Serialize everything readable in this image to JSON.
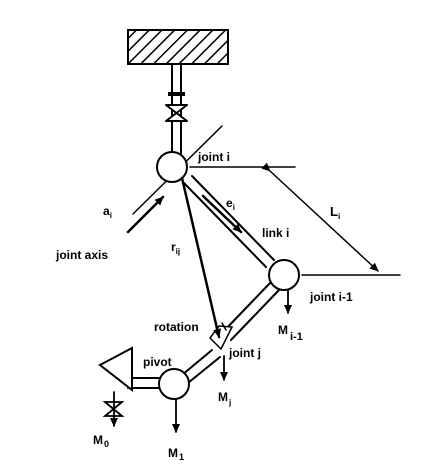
{
  "labels": {
    "joint_i": "joint i",
    "a_i": "a",
    "a_i_sub": "i",
    "e_i": "e",
    "e_i_sub": "i",
    "L_i": "L",
    "L_i_sub": "i",
    "link_i": "link i",
    "r_ij": "r",
    "r_ij_sub": "ij",
    "joint_axis": "joint axis",
    "joint_i_minus_1": "joint i-1",
    "M_i_minus_1": "M",
    "M_i_minus_1_sub": "i-1",
    "rotation": "rotation",
    "joint_j": "joint j",
    "M_j": "M",
    "M_j_sub": "j",
    "pivot": "pivot",
    "M_0": "M",
    "M_0_sub": "0",
    "M_1": "M",
    "M_1_sub": "1"
  },
  "colors": {
    "ink": "#000000",
    "background": "#ffffff"
  }
}
